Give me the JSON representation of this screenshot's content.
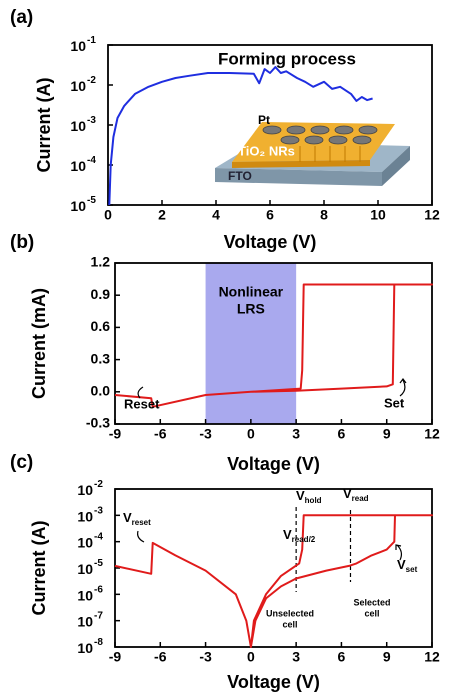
{
  "chart_data": [
    {
      "type": "line",
      "panel_label": "(a)",
      "xlabel": "Voltage (V)",
      "ylabel": "Current (A)",
      "log_y": true,
      "xlim": [
        0,
        12
      ],
      "xticks": [
        0,
        2,
        4,
        6,
        8,
        10,
        12
      ],
      "ylim": [
        1e-05,
        0.1
      ],
      "yticks": [
        {
          "value": 1e-05,
          "label": "10",
          "exponent": "-5"
        },
        {
          "value": 0.0001,
          "label": "10",
          "exponent": "-4"
        },
        {
          "value": 0.001,
          "label": "10",
          "exponent": "-3"
        },
        {
          "value": 0.01,
          "label": "10",
          "exponent": "-2"
        },
        {
          "value": 0.1,
          "label": "10",
          "exponent": "-1"
        }
      ],
      "series": [
        {
          "color": "#1f2ee0",
          "x": [
            0.05,
            0.1,
            0.2,
            0.35,
            0.6,
            1,
            1.5,
            2,
            2.5,
            3,
            3.7,
            4.5,
            5.4,
            5.6,
            5.8,
            6,
            6.2,
            6.4,
            6.6,
            7,
            7.3,
            7.6,
            8,
            8.3,
            8.6,
            9,
            9.2,
            9.4,
            9.6,
            9.8
          ],
          "values": [
            1e-05,
            0.0001,
            0.0005,
            0.0015,
            0.003,
            0.006,
            0.009,
            0.012,
            0.015,
            0.017,
            0.02,
            0.02,
            0.019,
            0.011,
            0.025,
            0.02,
            0.028,
            0.02,
            0.022,
            0.015,
            0.012,
            0.009,
            0.012,
            0.008,
            0.009,
            0.006,
            0.004,
            0.005,
            0.0042,
            0.0046
          ]
        }
      ],
      "annotations": [
        "Forming process"
      ],
      "inset_labels": [
        "Pt",
        "TiO₂ NRs",
        "FTO"
      ]
    },
    {
      "type": "line",
      "panel_label": "(b)",
      "xlabel": "Voltage (V)",
      "ylabel": "Current (mA)",
      "log_y": false,
      "xlim": [
        -9,
        12
      ],
      "xticks": [
        -9,
        -6,
        -3,
        0,
        3,
        6,
        9,
        12
      ],
      "ylim": [
        -0.3,
        1.2
      ],
      "yticks": [
        -0.3,
        {
          "value": 0,
          "label": "0.0"
        },
        0.3,
        0.6,
        0.9,
        1.2
      ],
      "shaded_region": {
        "range": [
          -3,
          3
        ],
        "color": "#a9a9ee",
        "label": [
          "Nonlinear",
          "LRS"
        ]
      },
      "series": [
        {
          "color": "#e01b1b",
          "x": [
            0,
            3,
            6,
            9,
            9.4,
            9.5,
            12,
            3.5,
            3.4,
            3.3,
            0,
            -3,
            -6.5,
            -6.6,
            -9
          ],
          "values": [
            0,
            0.01,
            0.03,
            0.05,
            0.07,
            1.0,
            1.0,
            1.0,
            0.2,
            0.03,
            0,
            -0.03,
            -0.14,
            -0.06,
            -0.03
          ]
        }
      ],
      "annotations": [
        "Reset",
        "Set"
      ]
    },
    {
      "type": "line",
      "panel_label": "(c)",
      "xlabel": "Voltage (V)",
      "ylabel": "Current (A)",
      "log_y": true,
      "xlim": [
        -9,
        12
      ],
      "xticks": [
        -9,
        -6,
        -3,
        0,
        3,
        6,
        9,
        12
      ],
      "ylim": [
        1e-08,
        0.01
      ],
      "yticks": [
        {
          "value": 1e-08,
          "label": "10",
          "exponent": "-8"
        },
        {
          "value": 1e-07,
          "label": "10",
          "exponent": "-7"
        },
        {
          "value": 1e-06,
          "label": "10",
          "exponent": "-6"
        },
        {
          "value": 1e-05,
          "label": "10",
          "exponent": "-5"
        },
        {
          "value": 0.0001,
          "label": "10",
          "exponent": "-4"
        },
        {
          "value": 0.001,
          "label": "10",
          "exponent": "-3"
        },
        {
          "value": 0.01,
          "label": "10",
          "exponent": "-2"
        }
      ],
      "vlines": [
        3,
        6.6
      ],
      "series": [
        {
          "color": "#e01b1b",
          "x": [
            0,
            0.3,
            1,
            2,
            3,
            5,
            6.5,
            7,
            8,
            9,
            9.5,
            9.55,
            12,
            3.5,
            3.4,
            3.2,
            2,
            1,
            0.2,
            0,
            -0.3,
            -1,
            -3,
            -5,
            -6.5,
            -6.6,
            -9
          ],
          "values": [
            1e-08,
            1e-07,
            7e-07,
            2e-06,
            4e-06,
            8e-06,
            1.2e-05,
            1.5e-05,
            3e-05,
            5e-05,
            0.0001,
            0.001,
            0.001,
            0.001,
            5e-05,
            1.5e-05,
            5e-06,
            1e-06,
            1e-07,
            1e-08,
            1e-07,
            1e-06,
            8e-06,
            3e-05,
            9e-05,
            6e-06,
            1.2e-05
          ]
        }
      ],
      "annotations": [
        {
          "text": "V",
          "sub": "reset"
        },
        {
          "text": "V",
          "sub": "hold"
        },
        {
          "text": "V",
          "sub": "read"
        },
        {
          "text": "V",
          "sub": "read/2"
        },
        {
          "text": "V",
          "sub": "set"
        },
        {
          "text": "Unselected",
          "text2": "cell"
        },
        {
          "text": "Selected",
          "text2": "cell"
        }
      ]
    }
  ]
}
